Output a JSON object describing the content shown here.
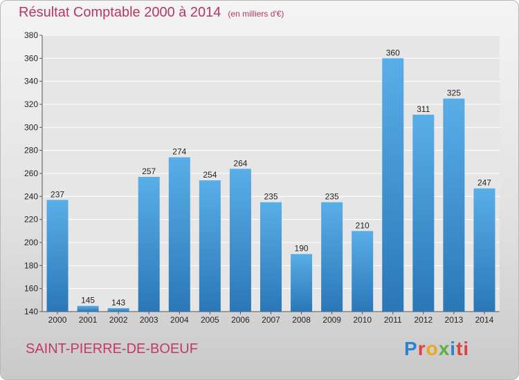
{
  "header": {
    "title": "Résultat Comptable 2000 à 2014",
    "subtitle": "(en milliers d'€)"
  },
  "footer": {
    "city": "SAINT-PIERRE-DE-BOEUF",
    "logo": [
      "P",
      "r",
      "o",
      "x",
      "i",
      "ti"
    ]
  },
  "colors": {
    "bar_top": "#5aaee8",
    "bar_bottom": "#2a77b8",
    "title": "#b5385f"
  },
  "chart_data": {
    "type": "bar",
    "title": "Résultat Comptable 2000 à 2014",
    "subtitle": "(en milliers d'€)",
    "xlabel": "",
    "ylabel": "",
    "categories": [
      "2000",
      "2001",
      "2002",
      "2003",
      "2004",
      "2005",
      "2006",
      "2007",
      "2008",
      "2009",
      "2010",
      "2011",
      "2012",
      "2013",
      "2014"
    ],
    "values": [
      237,
      145,
      143,
      257,
      274,
      254,
      264,
      235,
      190,
      235,
      210,
      360,
      311,
      325,
      247
    ],
    "ylim": [
      140,
      380
    ],
    "yticks": [
      140,
      160,
      180,
      200,
      220,
      240,
      260,
      280,
      300,
      320,
      340,
      360,
      380
    ],
    "grid": true,
    "legend": "none"
  }
}
